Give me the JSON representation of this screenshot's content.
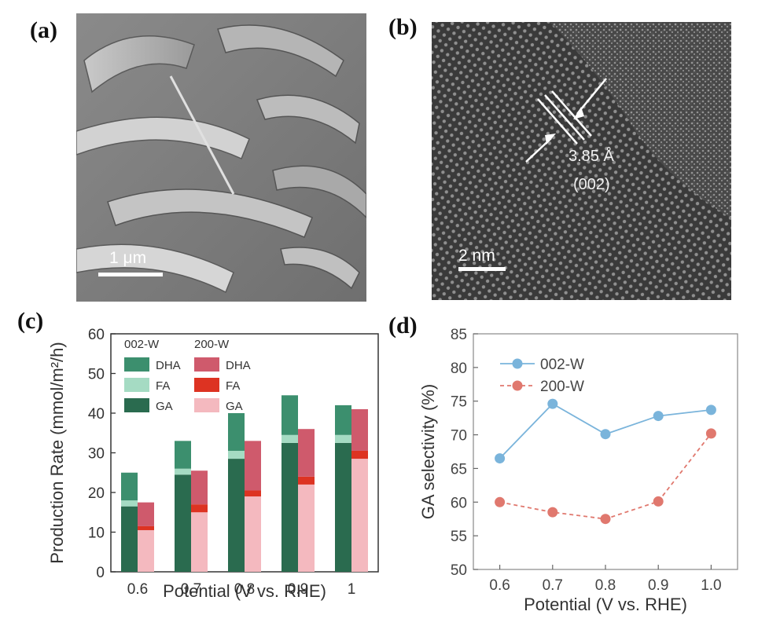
{
  "panels": {
    "a": {
      "letter": "(a)",
      "scale_label": "1 μm",
      "image_description_icon": "sem-nanosheets-image"
    },
    "b": {
      "letter": "(b)",
      "scale_label": "2 nm",
      "spacing_label": "3.85 Å",
      "plane_label": "(002)",
      "image_description_icon": "hrtem-lattice-image"
    },
    "c": {
      "letter": "(c)"
    },
    "d": {
      "letter": "(d)"
    }
  },
  "colors": {
    "dha_002": "#3c8f6e",
    "fa_002": "#a5dbc3",
    "ga_002": "#2a6b4f",
    "dha_200": "#cf5a6c",
    "fa_200": "#dd3322",
    "ga_200": "#f4b9bf",
    "line_002": "#7ab4db",
    "line_200": "#e0786e"
  },
  "chart_data": [
    {
      "type": "bar",
      "stacked": true,
      "grouped": true,
      "xlabel": "Potential (V vs. RHE)",
      "ylabel": "Production Rate (mmol/m²/h)",
      "ylim": [
        0,
        60
      ],
      "yticks": [
        "0",
        "10",
        "20",
        "30",
        "40",
        "50",
        "60"
      ],
      "categories": [
        "0.6",
        "0.7",
        "0.8",
        "0.9",
        "1"
      ],
      "legend": {
        "groups": [
          {
            "title": "002-W",
            "items": [
              "DHA",
              "FA",
              "GA"
            ]
          },
          {
            "title": "200-W",
            "items": [
              "DHA",
              "FA",
              "GA"
            ]
          }
        ],
        "placement": "top-left"
      },
      "series": [
        {
          "group": "002-W",
          "component": "GA",
          "values": [
            16.5,
            24.5,
            28.5,
            32.5,
            32.5
          ]
        },
        {
          "group": "002-W",
          "component": "FA",
          "values": [
            1.5,
            1.5,
            2.0,
            2.0,
            2.0
          ]
        },
        {
          "group": "002-W",
          "component": "DHA",
          "values": [
            7.0,
            7.0,
            9.5,
            10.0,
            7.5
          ]
        },
        {
          "group": "200-W",
          "component": "GA",
          "values": [
            10.5,
            15.0,
            19.0,
            22.0,
            28.5
          ]
        },
        {
          "group": "200-W",
          "component": "FA",
          "values": [
            1.0,
            2.0,
            1.5,
            2.0,
            2.0
          ]
        },
        {
          "group": "200-W",
          "component": "DHA",
          "values": [
            6.0,
            8.5,
            12.5,
            12.0,
            10.5
          ]
        }
      ]
    },
    {
      "type": "line",
      "xlabel": "Potential (V vs. RHE)",
      "ylabel": "GA selectivity (%)",
      "ylim": [
        50,
        85
      ],
      "xlim": [
        0.6,
        1.0
      ],
      "xticks": [
        "0.6",
        "0.7",
        "0.8",
        "0.9",
        "1.0"
      ],
      "yticks": [
        "50",
        "55",
        "60",
        "65",
        "70",
        "75",
        "80",
        "85"
      ],
      "legend_placement": "top-left",
      "series": [
        {
          "name": "002-W",
          "x": [
            0.6,
            0.7,
            0.8,
            0.9,
            1.0
          ],
          "y": [
            66.5,
            74.6,
            70.1,
            72.8,
            73.7
          ]
        },
        {
          "name": "200-W",
          "x": [
            0.6,
            0.7,
            0.8,
            0.9,
            1.0
          ],
          "y": [
            60.0,
            58.5,
            57.5,
            60.1,
            70.2
          ]
        }
      ]
    }
  ]
}
